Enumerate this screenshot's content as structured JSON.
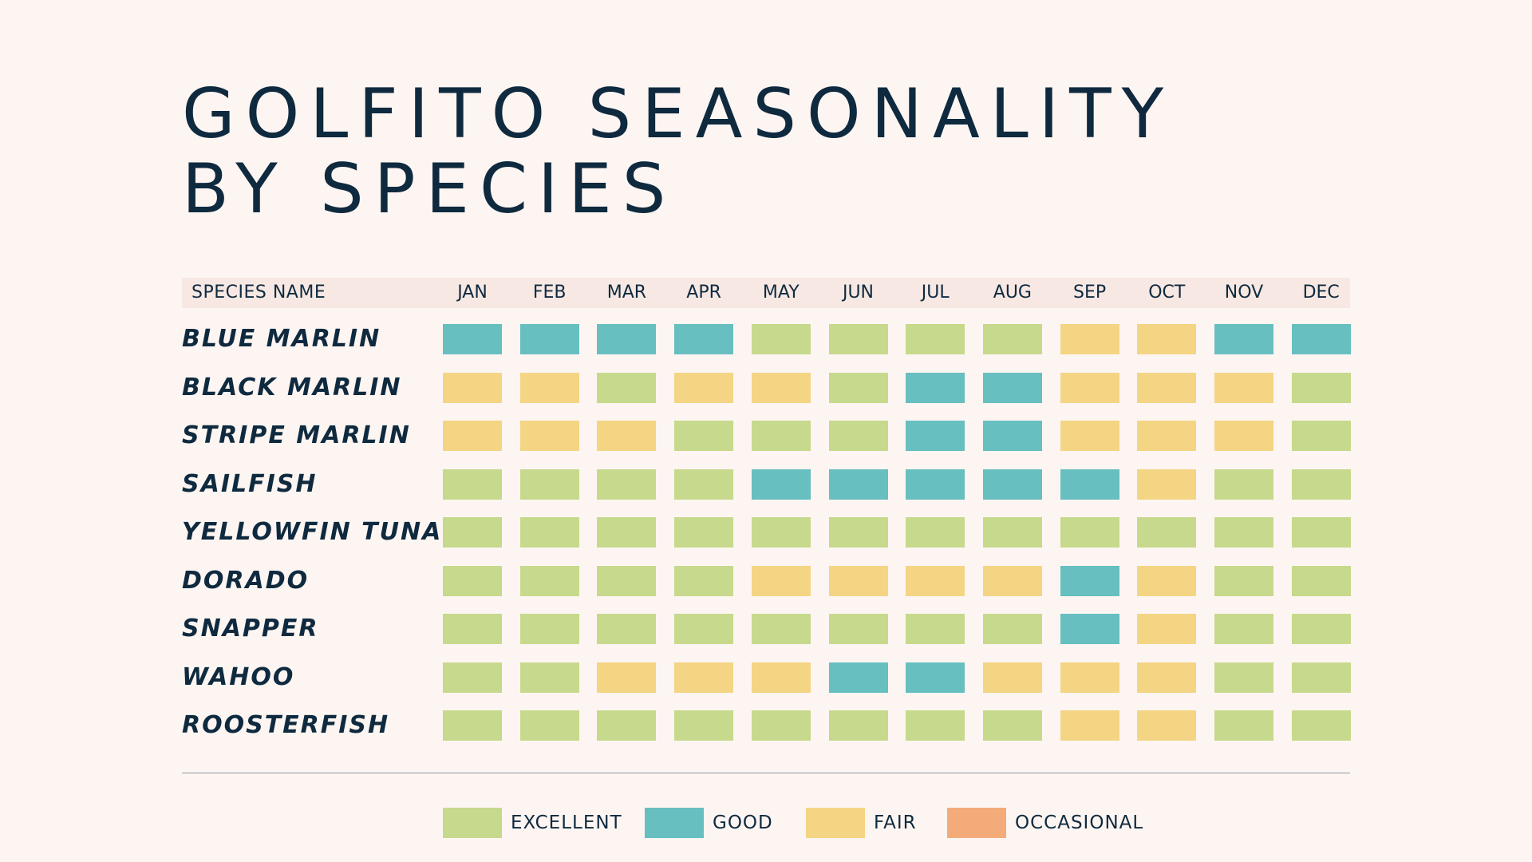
{
  "title": {
    "line1": "GOLFITO SEASONALITY",
    "line2": "BY SPECIES"
  },
  "colors": {
    "excellent": "#c7d98c",
    "good": "#67bfc0",
    "fair": "#f4d584",
    "occasional": "#f3ab7a",
    "header_bg": "#f7e8e3",
    "text": "#0f2a3f",
    "background": "#fdf5f2"
  },
  "chart_data": {
    "type": "heatmap",
    "title": "GOLFITO SEASONALITY BY SPECIES",
    "row_header": "SPECIES NAME",
    "columns": [
      "JAN",
      "FEB",
      "MAR",
      "APR",
      "MAY",
      "JUN",
      "JUL",
      "AUG",
      "SEP",
      "OCT",
      "NOV",
      "DEC"
    ],
    "rows": [
      {
        "name": "BLUE MARLIN",
        "values": [
          "good",
          "good",
          "good",
          "good",
          "excellent",
          "excellent",
          "excellent",
          "excellent",
          "fair",
          "fair",
          "good",
          "good"
        ]
      },
      {
        "name": "BLACK MARLIN",
        "values": [
          "fair",
          "fair",
          "excellent",
          "fair",
          "fair",
          "excellent",
          "good",
          "good",
          "fair",
          "fair",
          "fair",
          "excellent"
        ]
      },
      {
        "name": "STRIPE MARLIN",
        "values": [
          "fair",
          "fair",
          "fair",
          "excellent",
          "excellent",
          "excellent",
          "good",
          "good",
          "fair",
          "fair",
          "fair",
          "excellent"
        ]
      },
      {
        "name": "SAILFISH",
        "values": [
          "excellent",
          "excellent",
          "excellent",
          "excellent",
          "good",
          "good",
          "good",
          "good",
          "good",
          "fair",
          "excellent",
          "excellent"
        ]
      },
      {
        "name": "YELLOWFIN TUNA",
        "values": [
          "excellent",
          "excellent",
          "excellent",
          "excellent",
          "excellent",
          "excellent",
          "excellent",
          "excellent",
          "excellent",
          "excellent",
          "excellent",
          "excellent"
        ]
      },
      {
        "name": "DORADO",
        "values": [
          "excellent",
          "excellent",
          "excellent",
          "excellent",
          "fair",
          "fair",
          "fair",
          "fair",
          "good",
          "fair",
          "excellent",
          "excellent"
        ]
      },
      {
        "name": "SNAPPER",
        "values": [
          "excellent",
          "excellent",
          "excellent",
          "excellent",
          "excellent",
          "excellent",
          "excellent",
          "excellent",
          "good",
          "fair",
          "excellent",
          "excellent"
        ]
      },
      {
        "name": "WAHOO",
        "values": [
          "excellent",
          "excellent",
          "fair",
          "fair",
          "fair",
          "good",
          "good",
          "fair",
          "fair",
          "fair",
          "excellent",
          "excellent"
        ]
      },
      {
        "name": "ROOSTERFISH",
        "values": [
          "excellent",
          "excellent",
          "excellent",
          "excellent",
          "excellent",
          "excellent",
          "excellent",
          "excellent",
          "fair",
          "fair",
          "excellent",
          "excellent"
        ]
      }
    ],
    "legend": [
      {
        "key": "excellent",
        "label": "EXCELLENT"
      },
      {
        "key": "good",
        "label": "GOOD"
      },
      {
        "key": "fair",
        "label": "FAIR"
      },
      {
        "key": "occasional",
        "label": "OCCASIONAL"
      }
    ]
  }
}
